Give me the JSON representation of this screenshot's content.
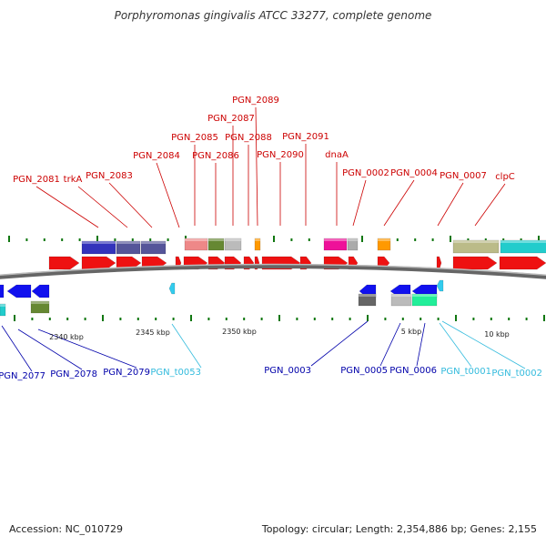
{
  "title": "Porphyromonas gingivalis ATCC 33277, complete genome",
  "footer": {
    "accession": "Accession: NC_010729",
    "summary": "Topology: circular; Length: 2,354,886 bp; Genes: 2,155"
  },
  "colors": {
    "forward_cds": "#ee1111",
    "reverse_cds": "#1111ee",
    "trna": "#33ccee",
    "forward_label": "#cc0000",
    "reverse_label": "#0000aa",
    "trna_label": "#33bbdd",
    "backbone": "#888888",
    "tick": "#117711"
  },
  "scale_labels": [
    "2340 kbp",
    "2345 kbp",
    "2350 kbp",
    "5 kbp",
    "10 kbp"
  ],
  "forward_labels": [
    {
      "text": "PGN_2081"
    },
    {
      "text": "trkA"
    },
    {
      "text": "PGN_2083"
    },
    {
      "text": "PGN_2084"
    },
    {
      "text": "PGN_2085"
    },
    {
      "text": "PGN_2086"
    },
    {
      "text": "PGN_2087"
    },
    {
      "text": "PGN_2088"
    },
    {
      "text": "PGN_2089"
    },
    {
      "text": "PGN_2090"
    },
    {
      "text": "PGN_2091"
    },
    {
      "text": "dnaA"
    },
    {
      "text": "PGN_0002"
    },
    {
      "text": "PGN_0004"
    },
    {
      "text": "PGN_0007"
    },
    {
      "text": "clpC"
    }
  ],
  "reverse_labels": [
    {
      "text": "PGN_2077"
    },
    {
      "text": "PGN_2078"
    },
    {
      "text": "PGN_2079"
    },
    {
      "text": "PGN_t0053"
    },
    {
      "text": "PGN_0003"
    },
    {
      "text": "PGN_0005"
    },
    {
      "text": "PGN_0006"
    },
    {
      "text": "PGN_t0001"
    },
    {
      "text": "PGN_t0002"
    }
  ]
}
